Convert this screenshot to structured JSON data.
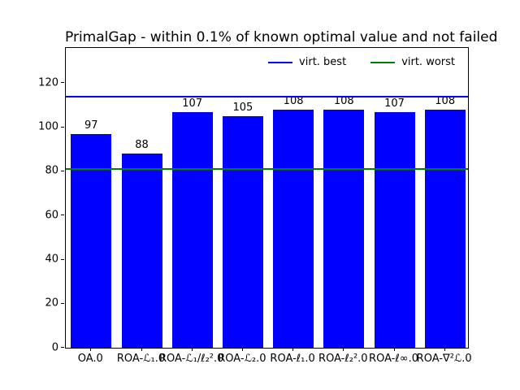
{
  "chart_data": {
    "type": "bar",
    "title": "PrimalGap - within 0.1% of known optimal value and not failed",
    "categories": [
      "OA.0",
      "ROA-ℒ₁.0",
      "ROA-ℒ₁/ℓ₂².0",
      "ROA-ℒ₂.0",
      "ROA-ℓ₁.0",
      "ROA-ℓ₂².0",
      "ROA-ℓ∞.0",
      "ROA-∇²ℒ.0"
    ],
    "values": [
      97,
      88,
      107,
      105,
      108,
      108,
      107,
      108
    ],
    "bar_color": "#0000ff",
    "xlabel": "",
    "ylabel": "",
    "ylim": [
      0,
      136
    ],
    "yticks": [
      0,
      20,
      40,
      60,
      80,
      100,
      120
    ],
    "grid": false,
    "legend_position": "upper right, horizontal, frameless",
    "reference_lines": [
      {
        "label": "virt. best",
        "value": 114,
        "color": "#0000ff"
      },
      {
        "label": "virt. worst",
        "value": 81,
        "color": "#008000"
      }
    ]
  }
}
